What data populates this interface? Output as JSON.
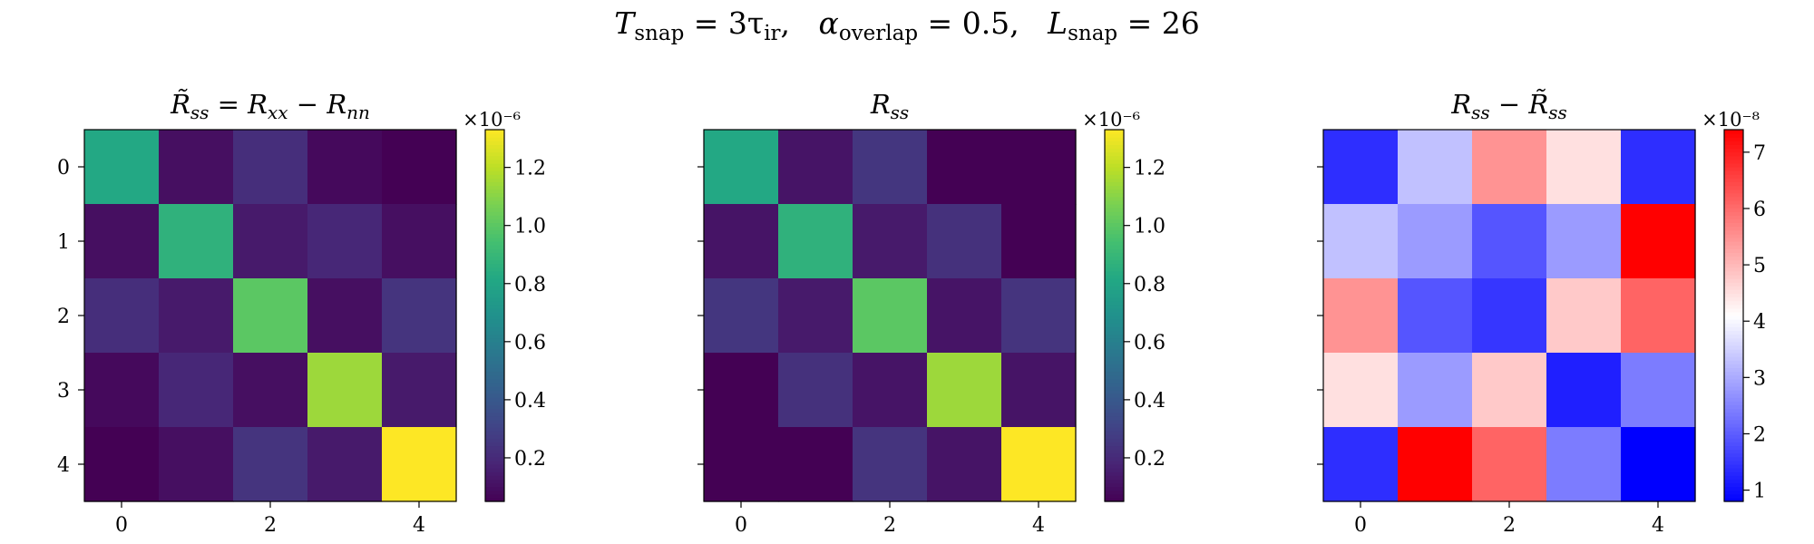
{
  "suptitle": {
    "t_sym": "T",
    "t_sub": "snap",
    "t_rhs": " = 3τ",
    "t_rhs_sub": "ir",
    "sep1": ",   ",
    "a_sym": "α",
    "a_sub": "overlap",
    "a_rhs": " = 0.5",
    "sep2": ",   ",
    "l_sym": "L",
    "l_sub": "snap",
    "l_rhs": " = 26"
  },
  "panels": [
    {
      "title_main": "R̃",
      "title_sub": "ss",
      "title_rest": " = R",
      "title_sub2": "xx",
      "title_rest2": " − R",
      "title_sub3": "nn",
      "colormap": "viridis",
      "exponent": "×10⁻⁶",
      "cbar_ticks": [
        "0.2",
        "0.4",
        "0.6",
        "0.8",
        "1.0",
        "1.2"
      ],
      "yticks_visible": true
    },
    {
      "title_main": "R",
      "title_sub": "ss",
      "title_rest": "",
      "title_sub2": "",
      "title_rest2": "",
      "title_sub3": "",
      "colormap": "viridis",
      "exponent": "×10⁻⁶",
      "cbar_ticks": [
        "0.2",
        "0.4",
        "0.6",
        "0.8",
        "1.0",
        "1.2"
      ],
      "yticks_visible": false
    },
    {
      "title_main": "R",
      "title_sub": "ss",
      "title_rest": " − R̃",
      "title_sub2": "ss",
      "title_rest2": "",
      "title_sub3": "",
      "colormap": "bwr",
      "exponent": "×10⁻⁸",
      "cbar_ticks": [
        "1",
        "2",
        "3",
        "4",
        "5",
        "6",
        "7"
      ],
      "yticks_visible": false
    }
  ],
  "xticks": [
    "0",
    "2",
    "4"
  ],
  "yticks": [
    "0",
    "1",
    "2",
    "3",
    "4"
  ],
  "chart_data": [
    {
      "type": "heatmap",
      "title": "R̃_ss = R_xx − R_nn",
      "rows": 5,
      "cols": 5,
      "values": [
        [
          0.82,
          0.1,
          0.22,
          0.08,
          0.05
        ],
        [
          0.1,
          0.87,
          0.14,
          0.19,
          0.1
        ],
        [
          0.22,
          0.14,
          1.0,
          0.1,
          0.24
        ],
        [
          0.08,
          0.19,
          0.1,
          1.14,
          0.14
        ],
        [
          0.05,
          0.1,
          0.24,
          0.14,
          1.33
        ]
      ],
      "vmin": 0.05,
      "vmax": 1.33,
      "colorbar_exponent": "×10⁻⁶",
      "colormap": "viridis"
    },
    {
      "type": "heatmap",
      "title": "R_ss",
      "rows": 5,
      "cols": 5,
      "values": [
        [
          0.82,
          0.12,
          0.25,
          0.05,
          0.05
        ],
        [
          0.12,
          0.87,
          0.14,
          0.23,
          0.05
        ],
        [
          0.25,
          0.14,
          1.0,
          0.12,
          0.24
        ],
        [
          0.05,
          0.23,
          0.12,
          1.14,
          0.12
        ],
        [
          0.05,
          0.05,
          0.24,
          0.12,
          1.33
        ]
      ],
      "vmin": 0.05,
      "vmax": 1.33,
      "colorbar_exponent": "×10⁻⁶",
      "colormap": "viridis"
    },
    {
      "type": "heatmap",
      "title": "R_ss − R̃_ss",
      "rows": 5,
      "cols": 5,
      "values": [
        [
          1.4,
          3.3,
          5.5,
          4.5,
          1.4
        ],
        [
          3.3,
          2.8,
          1.9,
          2.8,
          7.4
        ],
        [
          5.5,
          1.9,
          1.5,
          4.8,
          6.1
        ],
        [
          4.5,
          2.8,
          4.8,
          1.2,
          2.4
        ],
        [
          1.4,
          7.4,
          6.1,
          2.4,
          0.8
        ]
      ],
      "vmin": 0.8,
      "vmax": 7.4,
      "colorbar_exponent": "×10⁻⁸",
      "colormap": "bwr"
    }
  ]
}
